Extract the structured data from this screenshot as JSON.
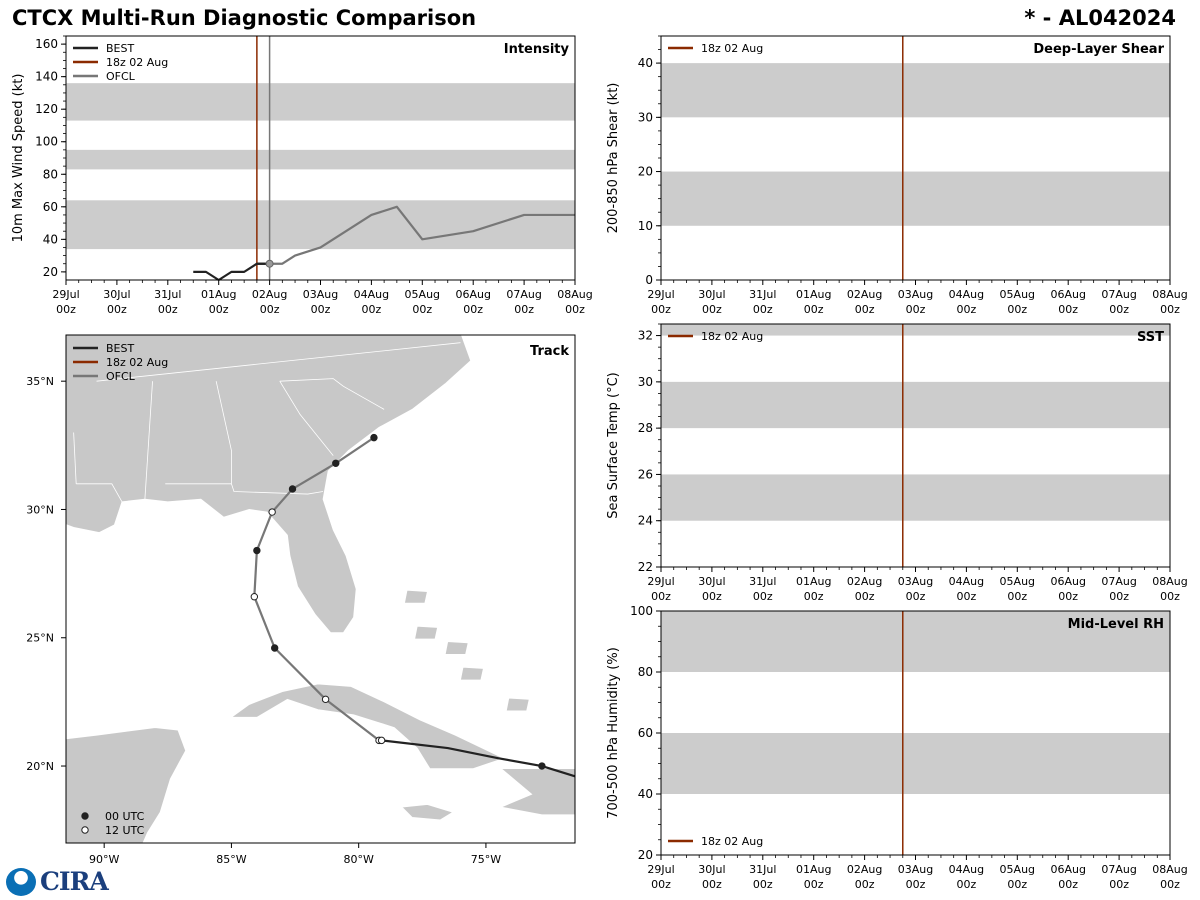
{
  "header": {
    "title": "CTCX Multi-Run Diagnostic Comparison",
    "storm": "* - AL042024"
  },
  "colors": {
    "best": "#222222",
    "run": "#8b2a00",
    "ofcl": "#777777",
    "band": "#cccccc",
    "land": "#c8c8c8"
  },
  "time_axis": {
    "ticks": [
      [
        "29Jul",
        "00z"
      ],
      [
        "30Jul",
        "00z"
      ],
      [
        "31Jul",
        "00z"
      ],
      [
        "01Aug",
        "00z"
      ],
      [
        "02Aug",
        "00z"
      ],
      [
        "03Aug",
        "00z"
      ],
      [
        "04Aug",
        "00z"
      ],
      [
        "05Aug",
        "00z"
      ],
      [
        "06Aug",
        "00z"
      ],
      [
        "07Aug",
        "00z"
      ],
      [
        "08Aug",
        "00z"
      ]
    ],
    "start_day": 0,
    "end_day": 10
  },
  "legend_entries": {
    "best": "BEST",
    "run": "18z 02 Aug",
    "ofcl": "OFCL",
    "utc00": "00 UTC",
    "utc12": "12 UTC"
  },
  "chart_data": [
    {
      "id": "intensity",
      "type": "line",
      "title": "Intensity",
      "ylabel": "10m Max Wind Speed (kt)",
      "ylim": [
        15,
        165
      ],
      "yticks": [
        20,
        40,
        60,
        80,
        100,
        120,
        140,
        160
      ],
      "bands": [
        [
          34,
          64
        ],
        [
          83,
          95
        ],
        [
          113,
          136
        ]
      ],
      "run_time_day": 3.75,
      "ofcl_time_day": 4.0,
      "series": [
        {
          "name": "BEST",
          "key": "best",
          "x": [
            2.5,
            2.75,
            3.0,
            3.25,
            3.5,
            3.75,
            4.0
          ],
          "y": [
            20,
            20,
            15,
            20,
            20,
            25,
            25
          ]
        },
        {
          "name": "BEST2",
          "key": "best",
          "x": [
            3.75,
            4.0
          ],
          "y": [
            25,
            25
          ]
        },
        {
          "name": "OFCL",
          "key": "ofcl",
          "x": [
            4.0,
            4.25,
            4.5,
            5.0,
            6.0,
            6.5,
            7.0,
            8.0,
            9.0,
            10.0
          ],
          "y": [
            25,
            25,
            30,
            35,
            55,
            60,
            40,
            45,
            55,
            55
          ]
        }
      ]
    },
    {
      "id": "shear",
      "type": "line",
      "title": "Deep-Layer Shear",
      "ylabel": "200-850 hPa Shear (kt)",
      "ylim": [
        0,
        45
      ],
      "yticks": [
        0,
        10,
        20,
        30,
        40
      ],
      "bands": [
        [
          10,
          20
        ],
        [
          30,
          40
        ]
      ],
      "run_time_day": 4.75,
      "series": []
    },
    {
      "id": "sst",
      "type": "line",
      "title": "SST",
      "ylabel": "Sea Surface Temp (°C)",
      "ylim": [
        22,
        32.5
      ],
      "yticks": [
        22,
        24,
        26,
        28,
        30,
        32
      ],
      "bands": [
        [
          24,
          26
        ],
        [
          28,
          30
        ],
        [
          32,
          32.5
        ]
      ],
      "run_time_day": 4.75,
      "series": []
    },
    {
      "id": "rh",
      "type": "line",
      "title": "Mid-Level RH",
      "ylabel": "700-500 hPa Humidity (%)",
      "ylim": [
        20,
        100
      ],
      "yticks": [
        20,
        40,
        60,
        80,
        100
      ],
      "bands": [
        [
          40,
          60
        ],
        [
          80,
          100
        ]
      ],
      "run_time_day": 4.75,
      "series": []
    },
    {
      "id": "track",
      "type": "scatter",
      "title": "Track",
      "xlim": [
        -91.5,
        -71.5
      ],
      "ylim": [
        17,
        36.8
      ],
      "xticks": [
        -90,
        -85,
        -80,
        -75
      ],
      "xtick_labels": [
        "90°W",
        "85°W",
        "80°W",
        "75°W"
      ],
      "yticks": [
        20,
        25,
        30,
        35
      ],
      "ytick_labels": [
        "20°N",
        "25°N",
        "30°N",
        "35°N"
      ],
      "best_track": [
        [
          -71.5,
          19.6
        ],
        [
          -72.8,
          20.0
        ],
        [
          -74.5,
          20.3
        ],
        [
          -76.5,
          20.7
        ],
        [
          -79.1,
          21.0
        ]
      ],
      "best_fixes": [
        [
          -72.8,
          20.0,
          0
        ],
        [
          -79.1,
          21.0,
          12
        ]
      ],
      "ofcl_track": [
        [
          -79.2,
          21.0
        ],
        [
          -81.3,
          22.6
        ],
        [
          -83.3,
          24.6
        ],
        [
          -84.1,
          26.6
        ],
        [
          -84.0,
          28.4
        ],
        [
          -83.4,
          29.9
        ],
        [
          -82.6,
          30.8
        ],
        [
          -80.9,
          31.8
        ],
        [
          -79.4,
          32.8
        ]
      ],
      "ofcl_fixes": [
        [
          -79.2,
          21.0,
          12
        ],
        [
          -81.3,
          22.6,
          12
        ],
        [
          -83.3,
          24.6,
          0
        ],
        [
          -84.1,
          26.6,
          12
        ],
        [
          -84.0,
          28.4,
          0
        ],
        [
          -83.4,
          29.9,
          12
        ],
        [
          -82.6,
          30.8,
          0
        ],
        [
          -80.9,
          31.8,
          0
        ],
        [
          -79.4,
          32.8,
          0
        ]
      ]
    }
  ],
  "logo": {
    "text": "CIRA"
  }
}
